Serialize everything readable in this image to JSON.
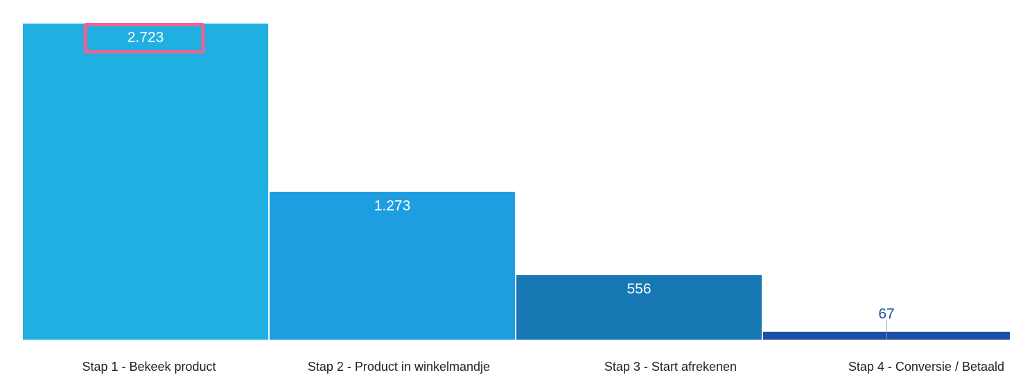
{
  "chart_data": {
    "type": "bar",
    "categories": [
      "Stap 1 - Bekeek product",
      "Stap 2 - Product in winkelmandje",
      "Stap 3 - Start afrekenen",
      "Stap 4 - Conversie / Betaald"
    ],
    "values": [
      2723,
      1273,
      556,
      67
    ],
    "value_labels": [
      "2.723",
      "1.273",
      "556",
      "67"
    ],
    "bar_colors": [
      "#1fb0e1",
      "#1e9ee0",
      "#1878b4",
      "#1a4fa5"
    ],
    "value_label_colors": [
      "#ffffff",
      "#ffffff",
      "#ffffff",
      "#1a4fa5"
    ],
    "highlight": {
      "category_index": 0,
      "color": "#f06292"
    },
    "title": "",
    "xlabel": "",
    "ylabel": "",
    "ylim": [
      0,
      2723
    ],
    "grid": false,
    "legend": "none"
  }
}
